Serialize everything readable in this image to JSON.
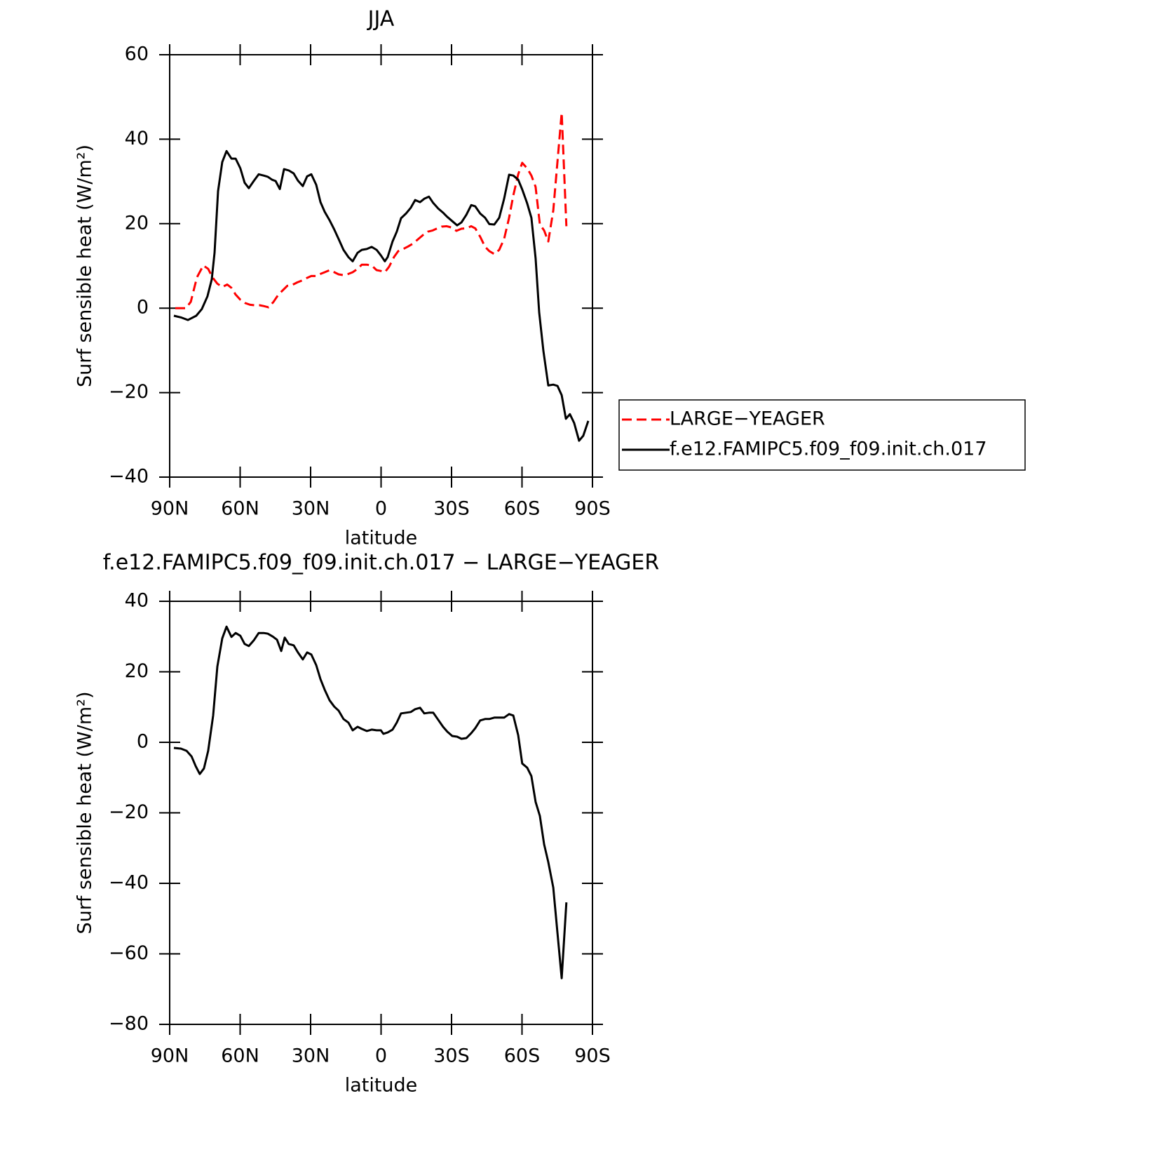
{
  "chart_data": [
    {
      "type": "line",
      "title": "JJA",
      "xlabel": "latitude",
      "ylabel": "Surf sensible heat (W/m²)",
      "xlim": [
        90,
        -90
      ],
      "xticks": [
        {
          "value": 90,
          "label": "90N"
        },
        {
          "value": 60,
          "label": "60N"
        },
        {
          "value": 30,
          "label": "30N"
        },
        0,
        {
          "value": -30,
          "label": "30S"
        },
        {
          "value": -60,
          "label": "60S"
        },
        {
          "value": -90,
          "label": "90S"
        }
      ],
      "ylim": [
        -40,
        60
      ],
      "yticks": [
        {
          "value": -40,
          "label": "−40"
        },
        {
          "value": -20,
          "label": "−20"
        },
        0,
        20,
        40,
        60
      ],
      "legend": "outside right",
      "series": [
        {
          "name": "LARGE−YEAGER",
          "color": "#ff0000",
          "dashed": true,
          "x": [
            87.6,
            85.2,
            83.1,
            81.0,
            78.4,
            75.7,
            73.6,
            71.8,
            69.7,
            67.6,
            65.5,
            63.7,
            61.9,
            59.9,
            57.8,
            55.7,
            53.9,
            51.8,
            50.0,
            47.9,
            45.8,
            43.7,
            41.9,
            39.9,
            37.8,
            35.7,
            33.9,
            31.8,
            29.7,
            27.6,
            25.8,
            24.0,
            21.9,
            19.9,
            18.1,
            16.0,
            13.9,
            12.1,
            10.0,
            8.2,
            6.1,
            4.0,
            1.9,
            0.1,
            -1.6,
            -3.4,
            -5.5,
            -7.3,
            -9.4,
            -11.5,
            -13.6,
            -15.7,
            -17.8,
            -19.9,
            -22.0,
            -24.0,
            -25.8,
            -27.9,
            -30.0,
            -32.1,
            -34.2,
            -36.3,
            -38.4,
            -40.1,
            -42.2,
            -44.3,
            -46.1,
            -48.2,
            -50.3,
            -52.4,
            -54.5,
            -56.3,
            -58.4,
            -60.1,
            -62.2,
            -64.0,
            -65.8,
            -67.6,
            -69.4,
            -71.2,
            -73.3,
            -75.1,
            -76.9,
            -78.9
          ],
          "values": [
            0,
            0,
            0,
            1.5,
            7.3,
            10.1,
            9.3,
            7.3,
            5.8,
            5.0,
            5.6,
            4.8,
            3.2,
            2.0,
            1.2,
            0.8,
            0.7,
            0.7,
            0.5,
            0.2,
            1.5,
            3.2,
            4.2,
            5.3,
            5.5,
            6.1,
            6.5,
            7.1,
            7.6,
            7.6,
            8.1,
            8.5,
            9.0,
            8.5,
            8.0,
            7.8,
            8.1,
            8.5,
            9.3,
            10.3,
            10.3,
            10.1,
            9.0,
            8.8,
            8.5,
            9.8,
            12.1,
            13.5,
            14.0,
            14.6,
            15.3,
            16.3,
            17.3,
            18.1,
            18.4,
            18.9,
            19.3,
            19.4,
            19.1,
            18.3,
            18.8,
            18.9,
            19.4,
            18.9,
            16.9,
            14.5,
            13.5,
            12.8,
            13.8,
            16.4,
            21.4,
            26.7,
            31.7,
            34.4,
            33.1,
            31.4,
            28.7,
            19.8,
            18.4,
            15.8,
            23.1,
            34.7,
            46.3,
            19.4
          ]
        },
        {
          "name": "f.e12.FAMIPC5.f09_f09.init.ch.017",
          "color": "#000000",
          "dashed": false,
          "x": [
            88.2,
            85.2,
            82.2,
            78.7,
            76.3,
            73.9,
            72.1,
            70.9,
            69.4,
            67.6,
            65.8,
            63.7,
            61.9,
            59.9,
            58.1,
            56.3,
            54.2,
            52.1,
            50.0,
            48.2,
            46.4,
            44.9,
            43.1,
            41.3,
            39.3,
            37.2,
            35.4,
            33.3,
            31.5,
            29.7,
            27.6,
            25.8,
            24.0,
            21.9,
            19.9,
            18.1,
            16.0,
            13.9,
            12.1,
            10.0,
            8.2,
            6.1,
            4.0,
            1.9,
            0.1,
            -1.6,
            -2.8,
            -4.9,
            -6.7,
            -8.5,
            -10.6,
            -12.7,
            -14.5,
            -16.6,
            -18.4,
            -20.4,
            -22.2,
            -24.3,
            -26.4,
            -28.2,
            -30.3,
            -32.4,
            -34.2,
            -36.3,
            -38.4,
            -40.1,
            -42.2,
            -44.3,
            -46.1,
            -48.2,
            -50.3,
            -52.4,
            -54.5,
            -56.3,
            -58.4,
            -60.1,
            -62.2,
            -64.0,
            -65.8,
            -67.3,
            -69.1,
            -71.2,
            -73.3,
            -75.1,
            -76.9,
            -78.7,
            -80.4,
            -82.2,
            -84.3,
            -86.1,
            -88.2
          ],
          "values": [
            -1.8,
            -2.2,
            -2.8,
            -1.8,
            -0.2,
            2.8,
            6.8,
            13.1,
            27.7,
            34.6,
            37.2,
            35.4,
            35.4,
            33.1,
            29.7,
            28.4,
            30.1,
            31.7,
            31.4,
            31.1,
            30.4,
            30.1,
            28.2,
            32.9,
            32.6,
            31.9,
            30.2,
            28.9,
            31.2,
            31.7,
            29.2,
            25.1,
            22.8,
            20.8,
            18.6,
            16.4,
            13.8,
            12.1,
            11.1,
            13.1,
            13.8,
            14.0,
            14.5,
            13.8,
            12.5,
            11.1,
            12.1,
            15.8,
            18.1,
            21.3,
            22.4,
            23.8,
            25.6,
            25.1,
            25.9,
            26.4,
            24.9,
            23.6,
            22.6,
            21.6,
            20.6,
            19.6,
            20.3,
            22.1,
            24.4,
            24.1,
            22.4,
            21.4,
            19.9,
            19.8,
            21.4,
            25.9,
            31.6,
            31.4,
            30.4,
            28.1,
            24.8,
            21.4,
            11.8,
            -1.0,
            -10.1,
            -18.3,
            -18.1,
            -18.4,
            -20.6,
            -26.2,
            -25.1,
            -27.2,
            -31.4,
            -30.2,
            -26.7
          ]
        }
      ]
    },
    {
      "type": "line",
      "title": "f.e12.FAMIPC5.f09_f09.init.ch.017 − LARGE−YEAGER",
      "xlabel": "latitude",
      "ylabel": "Surf sensible heat (W/m²)",
      "xlim": [
        90,
        -90
      ],
      "xticks": [
        {
          "value": 90,
          "label": "90N"
        },
        {
          "value": 60,
          "label": "60N"
        },
        {
          "value": 30,
          "label": "30N"
        },
        0,
        {
          "value": -30,
          "label": "30S"
        },
        {
          "value": -60,
          "label": "60S"
        },
        {
          "value": -90,
          "label": "90S"
        }
      ],
      "ylim": [
        -80,
        40
      ],
      "yticks": [
        {
          "value": -80,
          "label": "−80"
        },
        {
          "value": -60,
          "label": "−60"
        },
        {
          "value": -40,
          "label": "−40"
        },
        {
          "value": -20,
          "label": "−20"
        },
        0,
        20,
        40
      ],
      "series": [
        {
          "color": "#000000",
          "dashed": false,
          "x": [
            88.2,
            85.2,
            82.8,
            80.7,
            78.9,
            77.2,
            75.4,
            73.6,
            71.5,
            69.7,
            67.6,
            65.8,
            63.7,
            61.9,
            59.9,
            58.1,
            56.3,
            54.2,
            52.1,
            50.0,
            48.2,
            46.1,
            44.3,
            42.5,
            41.0,
            39.3,
            37.2,
            35.4,
            33.3,
            31.5,
            29.7,
            27.6,
            25.8,
            24.0,
            21.9,
            19.9,
            18.1,
            16.0,
            13.9,
            12.1,
            10.0,
            8.2,
            6.1,
            4.0,
            1.9,
            0.1,
            -1.0,
            -2.8,
            -4.9,
            -6.7,
            -8.5,
            -10.6,
            -12.7,
            -14.5,
            -16.6,
            -18.4,
            -20.4,
            -22.2,
            -24.3,
            -26.4,
            -28.2,
            -30.3,
            -32.4,
            -34.2,
            -36.3,
            -38.4,
            -40.1,
            -42.2,
            -44.3,
            -46.1,
            -48.2,
            -50.3,
            -52.4,
            -54.5,
            -56.3,
            -58.4,
            -60.1,
            -62.2,
            -64.0,
            -65.8,
            -67.6,
            -69.4,
            -71.2,
            -73.3,
            -75.1,
            -76.9,
            -78.9
          ],
          "values": [
            -1.6,
            -1.8,
            -2.4,
            -4.0,
            -6.8,
            -9.0,
            -7.4,
            -2.4,
            7.6,
            21.5,
            29.5,
            32.8,
            29.9,
            31.0,
            30.2,
            27.9,
            27.3,
            28.9,
            31.0,
            31.0,
            30.8,
            30.0,
            29.1,
            25.9,
            29.7,
            27.9,
            27.5,
            25.5,
            23.5,
            25.5,
            24.9,
            21.9,
            17.9,
            14.9,
            11.9,
            10.1,
            9.0,
            6.6,
            5.6,
            3.4,
            4.4,
            3.8,
            3.2,
            3.6,
            3.4,
            3.4,
            2.4,
            2.8,
            3.6,
            5.6,
            8.2,
            8.4,
            8.6,
            9.4,
            9.8,
            8.2,
            8.4,
            8.4,
            6.4,
            4.4,
            3.0,
            1.8,
            1.6,
            1.0,
            1.2,
            2.6,
            4.0,
            6.2,
            6.6,
            6.6,
            7.0,
            7.0,
            7.0,
            8.0,
            7.6,
            2.0,
            -6.0,
            -7.2,
            -9.6,
            -16.9,
            -20.9,
            -28.9,
            -34.0,
            -41.2,
            -54.1,
            -66.9,
            -45.4
          ]
        }
      ]
    }
  ]
}
